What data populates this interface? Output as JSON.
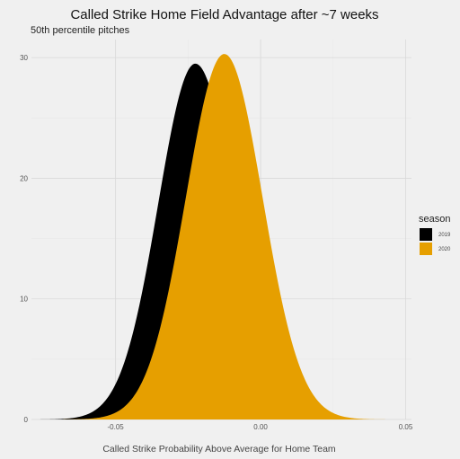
{
  "chart_data": {
    "type": "area",
    "title": "Called Strike Home Field Advantage after ~7 weeks",
    "subtitle": "50th percentile pitches",
    "xlabel": "Called Strike Probability Above Average for Home Team",
    "ylabel": "",
    "xlim": [
      -0.079,
      0.052
    ],
    "ylim": [
      0,
      31.5
    ],
    "x_ticks": [
      -0.05,
      0.0,
      0.05
    ],
    "x_tick_labels": [
      "-0.05",
      "0.00",
      "0.05"
    ],
    "y_ticks": [
      0,
      10,
      20,
      30
    ],
    "y_tick_labels": [
      "0",
      "10",
      "20",
      "30"
    ],
    "grid": true,
    "legend": {
      "title": "season",
      "position": "right"
    },
    "series": [
      {
        "name": "2019",
        "color": "#000000",
        "mean": -0.0225,
        "peak": 29.5,
        "sd_left": 0.0128,
        "sd_right": 0.0135,
        "x_min": -0.078,
        "x_max": 0.035
      },
      {
        "name": "2020",
        "color": "#E69F00",
        "mean": -0.0125,
        "peak": 30.3,
        "sd_left": 0.0133,
        "sd_right": 0.0132,
        "x_min": -0.068,
        "x_max": 0.045
      }
    ]
  }
}
